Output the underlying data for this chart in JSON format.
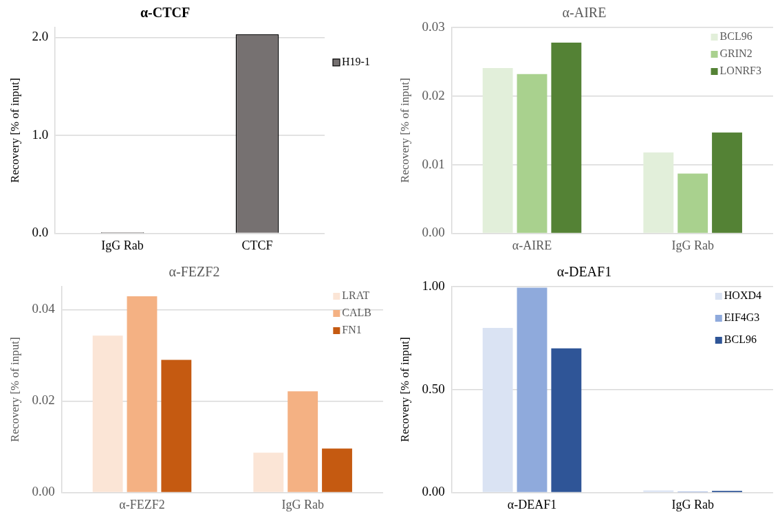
{
  "chart_data": [
    {
      "type": "bar",
      "title": "α-CTCF",
      "ylabel": "Recovery [% of input]",
      "categories": [
        "IgG Rab",
        "CTCF"
      ],
      "series": [
        {
          "name": "H19-1",
          "color": "#767171",
          "values": [
            0.01,
            2.03
          ]
        }
      ],
      "ylim": [
        0,
        2.1
      ],
      "yticks": [
        {
          "value": 0,
          "label": "0.0"
        },
        {
          "value": 1,
          "label": "1.0"
        },
        {
          "value": 2,
          "label": "2.0"
        }
      ],
      "grid": "y",
      "legend": "right"
    },
    {
      "type": "bar",
      "title": "α-AIRE",
      "ylabel": "Recovery [% of input]",
      "categories": [
        "α-AIRE",
        "IgG Rab"
      ],
      "series": [
        {
          "name": "BCL96",
          "color": "#e2efda",
          "values": [
            0.0241,
            0.0118
          ]
        },
        {
          "name": "GRIN2",
          "color": "#a9d18e",
          "values": [
            0.0232,
            0.0087
          ]
        },
        {
          "name": "LONRF3",
          "color": "#548235",
          "values": [
            0.0278,
            0.0147
          ]
        }
      ],
      "ylim": [
        0,
        0.03
      ],
      "yticks": [
        {
          "value": 0,
          "label": "0.00"
        },
        {
          "value": 0.01,
          "label": "0.01"
        },
        {
          "value": 0.02,
          "label": "0.02"
        },
        {
          "value": 0.03,
          "label": "0.03"
        }
      ],
      "grid": "y",
      "legend": "top right"
    },
    {
      "type": "bar",
      "title": "α-FEZF2",
      "ylabel": "Recovery [% of input]",
      "categories": [
        "α-FEZF2",
        "IgG Rab"
      ],
      "series": [
        {
          "name": "LRAT",
          "color": "#fbe5d6",
          "values": [
            0.0343,
            0.0087
          ]
        },
        {
          "name": "CALB",
          "color": "#f4b183",
          "values": [
            0.0429,
            0.0221
          ]
        },
        {
          "name": "FN1",
          "color": "#c55a11",
          "values": [
            0.029,
            0.0096
          ]
        }
      ],
      "ylim": [
        0,
        0.045
      ],
      "yticks": [
        {
          "value": 0,
          "label": "0.00"
        },
        {
          "value": 0.02,
          "label": "0.02"
        },
        {
          "value": 0.04,
          "label": "0.04"
        }
      ],
      "grid": "y",
      "legend": "top right"
    },
    {
      "type": "bar",
      "title": "α-DEAF1",
      "ylabel": "Recovery [% of input]",
      "categories": [
        "α-DEAF1",
        "IgG Rab"
      ],
      "series": [
        {
          "name": "HOXD4",
          "color": "#dae3f3",
          "values": [
            0.8,
            0.01
          ]
        },
        {
          "name": "EIF4G3",
          "color": "#8faadc",
          "values": [
            0.995,
            0.005
          ]
        },
        {
          "name": "BCL96",
          "color": "#2f5597",
          "values": [
            0.7,
            0.008
          ]
        }
      ],
      "ylim": [
        0,
        1.0
      ],
      "yticks": [
        {
          "value": 0,
          "label": "0.00"
        },
        {
          "value": 0.5,
          "label": "0.50"
        },
        {
          "value": 1,
          "label": "1.00"
        }
      ],
      "grid": "y",
      "legend": "top right"
    }
  ]
}
